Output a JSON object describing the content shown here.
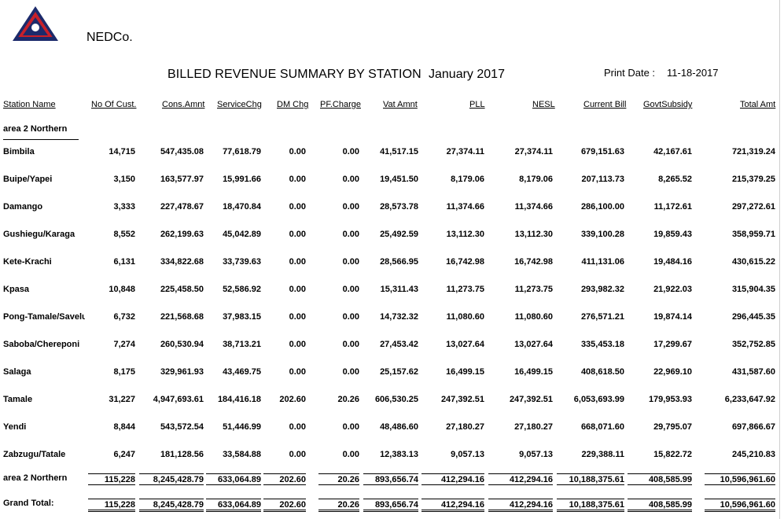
{
  "company": "NEDCo.",
  "report_title": "BILLED REVENUE SUMMARY BY STATION",
  "period": "January 2017",
  "print_label": "Print Date :",
  "print_date": "11-18-2017",
  "logo_text": "DISTRIBUTION CO.",
  "columns": [
    "Station Name",
    "No Of Cust.",
    "Cons.Amnt",
    "ServiceChg",
    "DM Chg",
    "PF.Charge",
    "Vat Amnt",
    "PLL",
    "NESL",
    "Current Bill",
    "GovtSubsidy",
    "Total Amt"
  ],
  "group_label": "area 2 Northern",
  "rows": [
    [
      "Bimbila",
      "14,715",
      "547,435.08",
      "77,618.79",
      "0.00",
      "0.00",
      "41,517.15",
      "27,374.11",
      "27,374.11",
      "679,151.63",
      "42,167.61",
      "721,319.24"
    ],
    [
      "Buipe/Yapei",
      "3,150",
      "163,577.97",
      "15,991.66",
      "0.00",
      "0.00",
      "19,451.50",
      "8,179.06",
      "8,179.06",
      "207,113.73",
      "8,265.52",
      "215,379.25"
    ],
    [
      "Damango",
      "3,333",
      "227,478.67",
      "18,470.84",
      "0.00",
      "0.00",
      "28,573.78",
      "11,374.66",
      "11,374.66",
      "286,100.00",
      "11,172.61",
      "297,272.61"
    ],
    [
      "Gushiegu/Karaga",
      "8,552",
      "262,199.63",
      "45,042.89",
      "0.00",
      "0.00",
      "25,492.59",
      "13,112.30",
      "13,112.30",
      "339,100.28",
      "19,859.43",
      "358,959.71"
    ],
    [
      "Kete-Krachi",
      "6,131",
      "334,822.68",
      "33,739.63",
      "0.00",
      "0.00",
      "28,566.95",
      "16,742.98",
      "16,742.98",
      "411,131.06",
      "19,484.16",
      "430,615.22"
    ],
    [
      "Kpasa",
      "10,848",
      "225,458.50",
      "52,586.92",
      "0.00",
      "0.00",
      "15,311.43",
      "11,273.75",
      "11,273.75",
      "293,982.32",
      "21,922.03",
      "315,904.35"
    ],
    [
      "Pong-Tamale/Savelugu",
      "6,732",
      "221,568.68",
      "37,983.15",
      "0.00",
      "0.00",
      "14,732.32",
      "11,080.60",
      "11,080.60",
      "276,571.21",
      "19,874.14",
      "296,445.35"
    ],
    [
      "Saboba/Chereponi",
      "7,274",
      "260,530.94",
      "38,713.21",
      "0.00",
      "0.00",
      "27,453.42",
      "13,027.64",
      "13,027.64",
      "335,453.18",
      "17,299.67",
      "352,752.85"
    ],
    [
      "Salaga",
      "8,175",
      "329,961.93",
      "43,469.75",
      "0.00",
      "0.00",
      "25,157.62",
      "16,499.15",
      "16,499.15",
      "408,618.50",
      "22,969.10",
      "431,587.60"
    ],
    [
      "Tamale",
      "31,227",
      "4,947,693.61",
      "184,416.18",
      "202.60",
      "20.26",
      "606,530.25",
      "247,392.51",
      "247,392.51",
      "6,053,693.99",
      "179,953.93",
      "6,233,647.92"
    ],
    [
      "Yendi",
      "8,844",
      "543,572.54",
      "51,446.99",
      "0.00",
      "0.00",
      "48,486.60",
      "27,180.27",
      "27,180.27",
      "668,071.60",
      "29,795.07",
      "697,866.67"
    ],
    [
      "Zabzugu/Tatale",
      "6,247",
      "181,128.56",
      "33,584.88",
      "0.00",
      "0.00",
      "12,383.13",
      "9,057.13",
      "9,057.13",
      "229,388.11",
      "15,822.72",
      "245,210.83"
    ]
  ],
  "group_total": [
    "area 2 Northern",
    "115,228",
    "8,245,428.79",
    "633,064.89",
    "202.60",
    "20.26",
    "893,656.74",
    "412,294.16",
    "412,294.16",
    "10,188,375.61",
    "408,585.99",
    "10,596,961.60"
  ],
  "grand_total": [
    "Grand Total:",
    "115,228",
    "8,245,428.79",
    "633,064.89",
    "202.60",
    "20.26",
    "893,656.74",
    "412,294.16",
    "412,294.16",
    "10,188,375.61",
    "408,585.99",
    "10,596,961.60"
  ]
}
